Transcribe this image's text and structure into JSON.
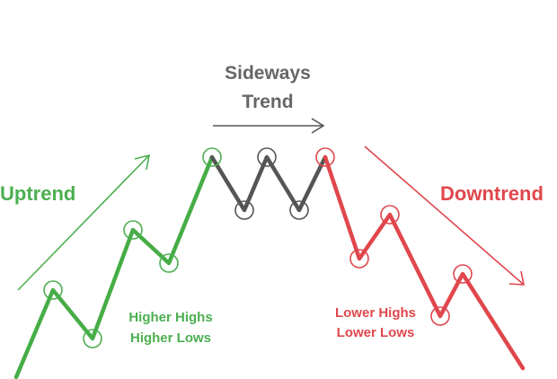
{
  "colors": {
    "up": "#4caf50",
    "up_line": "#46ad46",
    "side": "#555555",
    "down": "#e0474c",
    "sideways_text": "#666666"
  },
  "labels": {
    "uptrend": "Uptrend",
    "downtrend": "Downtrend",
    "sideways_line1": "Sideways",
    "sideways_line2": "Trend",
    "up_note_line1": "Higher Highs",
    "up_note_line2": "Higher Lows",
    "down_note_line1": "Lower Highs",
    "down_note_line2": "Lower Lows"
  },
  "segments": {
    "uptrend": "price rising",
    "sideways": "price ranging",
    "downtrend": "price falling"
  }
}
